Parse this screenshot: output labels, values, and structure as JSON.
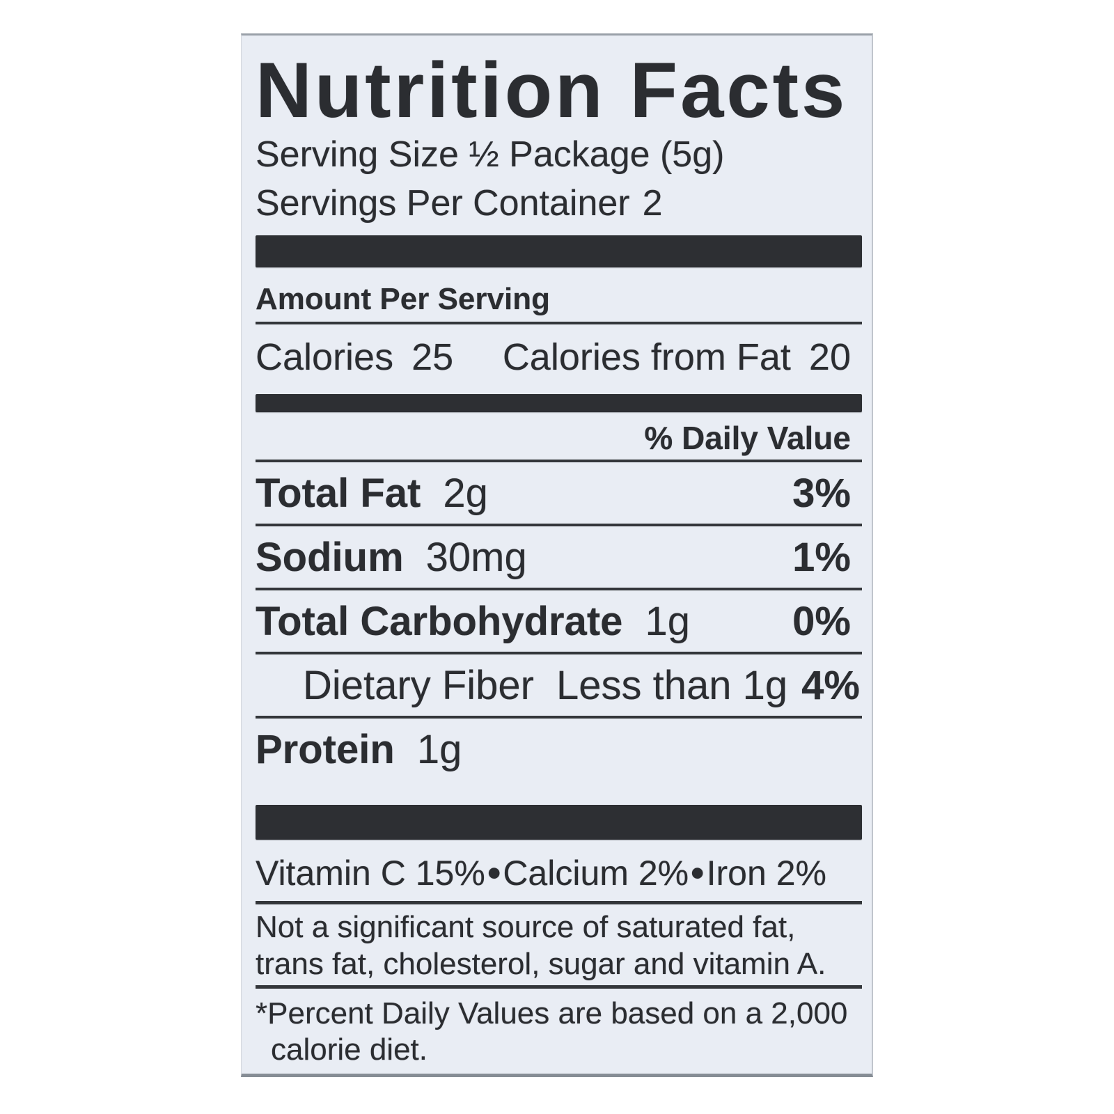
{
  "label": {
    "title": "Nutrition Facts",
    "serving_size": "Serving Size ½ Package (5g)",
    "servings_per_container": {
      "text": "Servings Per Container",
      "value": "2"
    },
    "amount_per_serving": "Amount Per Serving",
    "calories": {
      "label": "Calories",
      "value": "25"
    },
    "calories_from_fat": {
      "label": "Calories from Fat",
      "value": "20"
    },
    "daily_value_header": "% Daily Value",
    "rows": [
      {
        "name": "Total Fat",
        "amount": "2g",
        "dv": "3%"
      },
      {
        "name": "Sodium",
        "amount": "30mg",
        "dv": "1%"
      },
      {
        "name": "Total Carbohydrate",
        "amount": "1g",
        "dv": "0%"
      },
      {
        "name": "Dietary Fiber",
        "amount": "Less than 1g",
        "dv": "4%"
      },
      {
        "name": "Protein",
        "amount": "1g",
        "dv": ""
      }
    ],
    "vitamins": [
      {
        "name": "Vitamin C",
        "value": "15%"
      },
      {
        "name": "Calcium",
        "value": "2%"
      },
      {
        "name": "Iron",
        "value": "2%"
      }
    ],
    "bullet": "•",
    "not_significant_note": "Not a significant source of saturated fat, trans fat, cholesterol, sugar and vitamin A.",
    "footnote_marker": "*",
    "footnote_text": "Percent Daily Values are based on a 2,000 calorie diet.",
    "colors": {
      "background": "#e9edf4",
      "ink": "#2b2d31",
      "bar": "#2d2f33"
    }
  }
}
